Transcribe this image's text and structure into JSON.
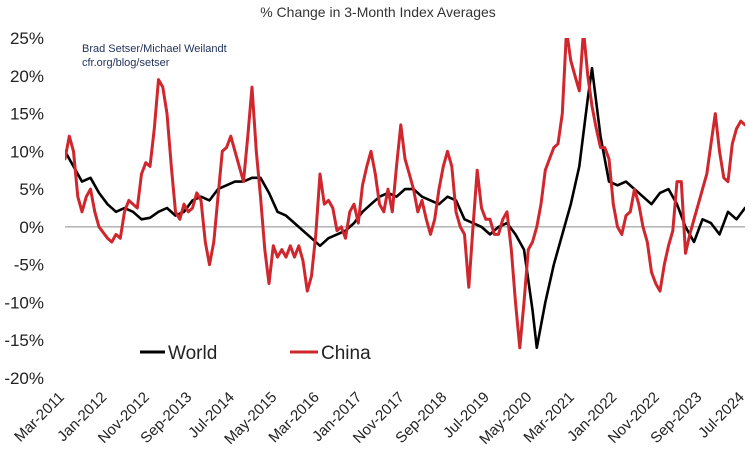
{
  "chart_data": {
    "type": "line",
    "title": "% Change in 3-Month Index Averages",
    "credit_lines": [
      "Brad Setser/Michael Weilandt",
      "cfr.org/blog/setser"
    ],
    "ylim": [
      -20,
      25
    ],
    "yticks": [
      "25%",
      "20%",
      "15%",
      "10%",
      "5%",
      "0%",
      "-5%",
      "-10%",
      "-15%",
      "-20%"
    ],
    "ytick_values": [
      25,
      20,
      15,
      10,
      5,
      0,
      -5,
      -10,
      -15,
      -20
    ],
    "xlim": [
      "2011-03",
      "2024-07"
    ],
    "xticks": [
      "Mar-2011",
      "Jan-2012",
      "Nov-2012",
      "Sep-2013",
      "Jul-2014",
      "May-2015",
      "Mar-2016",
      "Jan-2017",
      "Nov-2017",
      "Sep-2018",
      "Jul-2019",
      "May-2020",
      "Mar-2021",
      "Jan-2022",
      "Nov-2022",
      "Sep-2023",
      "Jul-2024"
    ],
    "xtick_dates": [
      "2011-03",
      "2012-01",
      "2012-11",
      "2013-09",
      "2014-07",
      "2015-05",
      "2016-03",
      "2017-01",
      "2017-11",
      "2018-09",
      "2019-07",
      "2020-05",
      "2021-03",
      "2022-01",
      "2022-11",
      "2023-09",
      "2024-07"
    ],
    "grid": false,
    "zero_line": true,
    "legend_position": "bottom-left",
    "series": [
      {
        "name": "World",
        "color": "#000000",
        "points": [
          [
            "2011-03",
            10
          ],
          [
            "2011-05",
            8
          ],
          [
            "2011-07",
            6
          ],
          [
            "2011-09",
            6.5
          ],
          [
            "2011-11",
            4.5
          ],
          [
            "2012-01",
            3
          ],
          [
            "2012-03",
            2
          ],
          [
            "2012-05",
            2.5
          ],
          [
            "2012-07",
            2
          ],
          [
            "2012-09",
            1
          ],
          [
            "2012-11",
            1.2
          ],
          [
            "2013-01",
            2
          ],
          [
            "2013-03",
            2.5
          ],
          [
            "2013-05",
            1.5
          ],
          [
            "2013-07",
            2
          ],
          [
            "2013-09",
            3.5
          ],
          [
            "2013-11",
            4
          ],
          [
            "2014-01",
            3.5
          ],
          [
            "2014-03",
            5
          ],
          [
            "2014-05",
            5.5
          ],
          [
            "2014-07",
            6
          ],
          [
            "2014-09",
            6
          ],
          [
            "2014-11",
            6.5
          ],
          [
            "2015-01",
            6.5
          ],
          [
            "2015-03",
            4.5
          ],
          [
            "2015-05",
            2
          ],
          [
            "2015-07",
            1.5
          ],
          [
            "2015-09",
            0.5
          ],
          [
            "2015-11",
            -0.5
          ],
          [
            "2016-01",
            -1.5
          ],
          [
            "2016-03",
            -2.5
          ],
          [
            "2016-05",
            -1.5
          ],
          [
            "2016-07",
            -1
          ],
          [
            "2016-09",
            -0.5
          ],
          [
            "2016-11",
            0.5
          ],
          [
            "2017-01",
            2
          ],
          [
            "2017-03",
            3
          ],
          [
            "2017-05",
            4
          ],
          [
            "2017-07",
            4.5
          ],
          [
            "2017-09",
            4
          ],
          [
            "2017-11",
            5
          ],
          [
            "2018-01",
            5
          ],
          [
            "2018-03",
            4
          ],
          [
            "2018-05",
            3.5
          ],
          [
            "2018-07",
            3
          ],
          [
            "2018-09",
            4
          ],
          [
            "2018-11",
            3.5
          ],
          [
            "2019-01",
            1
          ],
          [
            "2019-03",
            0.5
          ],
          [
            "2019-05",
            0
          ],
          [
            "2019-07",
            -1
          ],
          [
            "2019-09",
            0
          ],
          [
            "2019-11",
            0.5
          ],
          [
            "2020-01",
            -1
          ],
          [
            "2020-03",
            -3
          ],
          [
            "2020-05",
            -11
          ],
          [
            "2020-06",
            -16
          ],
          [
            "2020-08",
            -10
          ],
          [
            "2020-10",
            -5
          ],
          [
            "2020-12",
            -1
          ],
          [
            "2021-02",
            3
          ],
          [
            "2021-04",
            8
          ],
          [
            "2021-06",
            17
          ],
          [
            "2021-07",
            21
          ],
          [
            "2021-09",
            12
          ],
          [
            "2021-11",
            6
          ],
          [
            "2022-01",
            5.5
          ],
          [
            "2022-03",
            6
          ],
          [
            "2022-05",
            5
          ],
          [
            "2022-07",
            4
          ],
          [
            "2022-09",
            3
          ],
          [
            "2022-11",
            4.5
          ],
          [
            "2023-01",
            5
          ],
          [
            "2023-03",
            3
          ],
          [
            "2023-05",
            0
          ],
          [
            "2023-07",
            -2
          ],
          [
            "2023-09",
            1
          ],
          [
            "2023-11",
            0.5
          ],
          [
            "2024-01",
            -1
          ],
          [
            "2024-03",
            2
          ],
          [
            "2024-05",
            1
          ],
          [
            "2024-07",
            2.5
          ]
        ]
      },
      {
        "name": "China",
        "color": "#d0262d",
        "points": [
          [
            "2011-03",
            9
          ],
          [
            "2011-04",
            12
          ],
          [
            "2011-05",
            10
          ],
          [
            "2011-06",
            4
          ],
          [
            "2011-07",
            2
          ],
          [
            "2011-08",
            4
          ],
          [
            "2011-09",
            5
          ],
          [
            "2011-10",
            2
          ],
          [
            "2011-11",
            0
          ],
          [
            "2012-01",
            -1.5
          ],
          [
            "2012-02",
            -2
          ],
          [
            "2012-03",
            -1
          ],
          [
            "2012-04",
            -1.5
          ],
          [
            "2012-05",
            2
          ],
          [
            "2012-06",
            3.5
          ],
          [
            "2012-07",
            3
          ],
          [
            "2012-08",
            2.5
          ],
          [
            "2012-09",
            7
          ],
          [
            "2012-10",
            8.5
          ],
          [
            "2012-11",
            8
          ],
          [
            "2012-12",
            13
          ],
          [
            "2013-01",
            19.5
          ],
          [
            "2013-02",
            18.5
          ],
          [
            "2013-03",
            15
          ],
          [
            "2013-04",
            8
          ],
          [
            "2013-05",
            2
          ],
          [
            "2013-06",
            1
          ],
          [
            "2013-07",
            3
          ],
          [
            "2013-08",
            2
          ],
          [
            "2013-09",
            2.5
          ],
          [
            "2013-10",
            4.5
          ],
          [
            "2013-11",
            3.5
          ],
          [
            "2013-12",
            -2
          ],
          [
            "2014-01",
            -5
          ],
          [
            "2014-02",
            -2
          ],
          [
            "2014-03",
            4
          ],
          [
            "2014-04",
            10
          ],
          [
            "2014-05",
            10.5
          ],
          [
            "2014-06",
            12
          ],
          [
            "2014-07",
            10
          ],
          [
            "2014-08",
            8
          ],
          [
            "2014-09",
            6
          ],
          [
            "2014-10",
            12
          ],
          [
            "2014-11",
            18.5
          ],
          [
            "2014-12",
            10
          ],
          [
            "2015-01",
            4
          ],
          [
            "2015-02",
            -3
          ],
          [
            "2015-03",
            -7.5
          ],
          [
            "2015-04",
            -2.5
          ],
          [
            "2015-05",
            -4
          ],
          [
            "2015-06",
            -3
          ],
          [
            "2015-07",
            -4
          ],
          [
            "2015-08",
            -2.5
          ],
          [
            "2015-09",
            -4
          ],
          [
            "2015-10",
            -2.5
          ],
          [
            "2015-11",
            -4.5
          ],
          [
            "2015-12",
            -8.5
          ],
          [
            "2016-01",
            -6.5
          ],
          [
            "2016-02",
            -1
          ],
          [
            "2016-03",
            7
          ],
          [
            "2016-04",
            3
          ],
          [
            "2016-05",
            3.5
          ],
          [
            "2016-06",
            2.5
          ],
          [
            "2016-07",
            -0.5
          ],
          [
            "2016-08",
            0
          ],
          [
            "2016-09",
            -1.5
          ],
          [
            "2016-10",
            2
          ],
          [
            "2016-11",
            3
          ],
          [
            "2016-12",
            0.5
          ],
          [
            "2017-01",
            5.5
          ],
          [
            "2017-02",
            8
          ],
          [
            "2017-03",
            10
          ],
          [
            "2017-04",
            7
          ],
          [
            "2017-05",
            3
          ],
          [
            "2017-06",
            2
          ],
          [
            "2017-07",
            5
          ],
          [
            "2017-08",
            2
          ],
          [
            "2017-09",
            8
          ],
          [
            "2017-10",
            13.5
          ],
          [
            "2017-11",
            9
          ],
          [
            "2017-12",
            7
          ],
          [
            "2018-01",
            5
          ],
          [
            "2018-02",
            2
          ],
          [
            "2018-03",
            3.5
          ],
          [
            "2018-04",
            1
          ],
          [
            "2018-05",
            -1
          ],
          [
            "2018-06",
            1
          ],
          [
            "2018-07",
            5
          ],
          [
            "2018-08",
            8
          ],
          [
            "2018-09",
            10
          ],
          [
            "2018-10",
            8
          ],
          [
            "2018-11",
            2
          ],
          [
            "2018-12",
            0
          ],
          [
            "2019-01",
            -1
          ],
          [
            "2019-02",
            -8
          ],
          [
            "2019-03",
            0
          ],
          [
            "2019-04",
            7.5
          ],
          [
            "2019-05",
            2.5
          ],
          [
            "2019-06",
            1
          ],
          [
            "2019-07",
            1
          ],
          [
            "2019-08",
            -1
          ],
          [
            "2019-09",
            -1
          ],
          [
            "2019-10",
            1
          ],
          [
            "2019-11",
            2
          ],
          [
            "2019-12",
            -3
          ],
          [
            "2020-01",
            -10
          ],
          [
            "2020-02",
            -16
          ],
          [
            "2020-03",
            -10
          ],
          [
            "2020-04",
            -3
          ],
          [
            "2020-05",
            -2
          ],
          [
            "2020-06",
            0
          ],
          [
            "2020-07",
            3
          ],
          [
            "2020-08",
            7.5
          ],
          [
            "2020-09",
            9
          ],
          [
            "2020-10",
            10.5
          ],
          [
            "2020-11",
            11
          ],
          [
            "2020-12",
            15
          ],
          [
            "2021-01",
            26
          ],
          [
            "2021-02",
            22
          ],
          [
            "2021-03",
            20
          ],
          [
            "2021-04",
            18
          ],
          [
            "2021-05",
            26
          ],
          [
            "2021-06",
            20
          ],
          [
            "2021-07",
            16
          ],
          [
            "2021-08",
            13
          ],
          [
            "2021-09",
            10.5
          ],
          [
            "2021-10",
            10.5
          ],
          [
            "2021-11",
            9
          ],
          [
            "2021-12",
            3
          ],
          [
            "2022-01",
            0
          ],
          [
            "2022-02",
            -1
          ],
          [
            "2022-03",
            1.5
          ],
          [
            "2022-04",
            2
          ],
          [
            "2022-05",
            5
          ],
          [
            "2022-06",
            3
          ],
          [
            "2022-07",
            0
          ],
          [
            "2022-08",
            -2
          ],
          [
            "2022-09",
            -6
          ],
          [
            "2022-10",
            -7.5
          ],
          [
            "2022-11",
            -8.5
          ],
          [
            "2022-12",
            -5
          ],
          [
            "2023-01",
            -2.5
          ],
          [
            "2023-02",
            -0.5
          ],
          [
            "2023-03",
            6
          ],
          [
            "2023-04",
            6
          ],
          [
            "2023-05",
            -3.5
          ],
          [
            "2023-06",
            -1
          ],
          [
            "2023-07",
            1
          ],
          [
            "2023-08",
            3
          ],
          [
            "2023-09",
            5
          ],
          [
            "2023-10",
            7
          ],
          [
            "2023-11",
            11
          ],
          [
            "2023-12",
            15
          ],
          [
            "2024-01",
            10
          ],
          [
            "2024-02",
            6.5
          ],
          [
            "2024-03",
            6
          ],
          [
            "2024-04",
            11
          ],
          [
            "2024-05",
            13
          ],
          [
            "2024-06",
            14
          ],
          [
            "2024-07",
            13.5
          ]
        ]
      }
    ]
  }
}
